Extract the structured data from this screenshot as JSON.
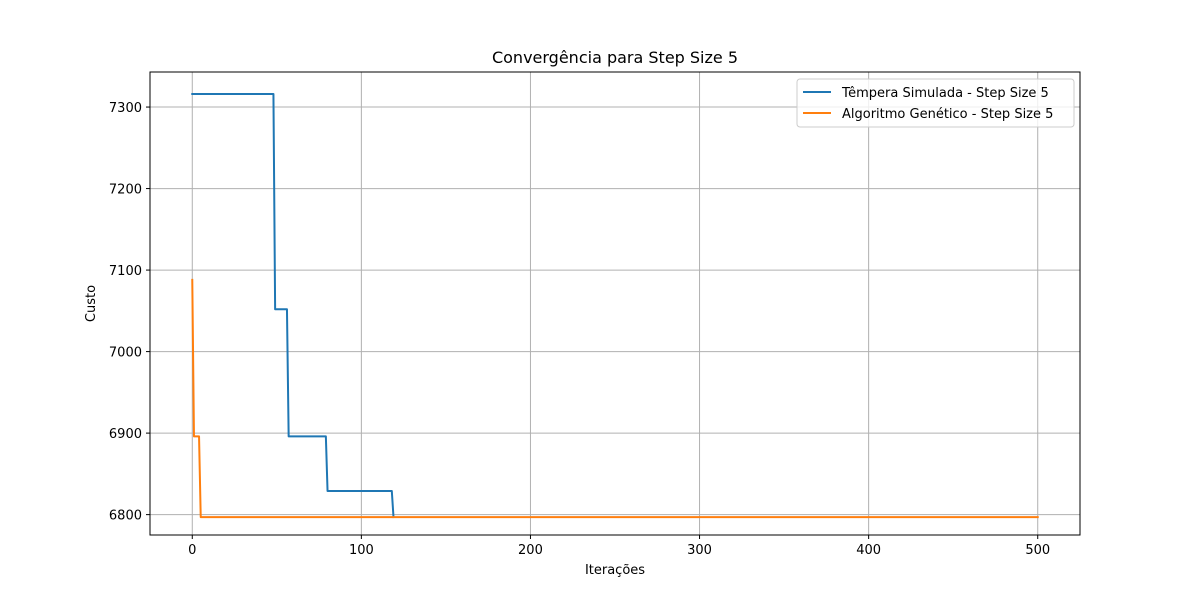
{
  "chart_data": {
    "type": "line",
    "title": "Convergência para Step Size 5",
    "xlabel": "Iterações",
    "ylabel": "Custo",
    "xlim": [
      -25,
      525
    ],
    "ylim": [
      6775,
      7343
    ],
    "xticks": [
      0,
      100,
      200,
      300,
      400,
      500
    ],
    "yticks": [
      6800,
      6900,
      7000,
      7100,
      7200,
      7300
    ],
    "grid": true,
    "legend_position": "top-right",
    "series": [
      {
        "name": "Têmpera Simulada - Step Size 5",
        "color": "#1f77b4",
        "x": [
          0,
          48,
          49,
          56,
          57,
          79,
          80,
          118,
          119
        ],
        "y": [
          7316,
          7316,
          7052,
          7052,
          6896,
          6896,
          6829,
          6829,
          6797
        ]
      },
      {
        "name": "Algoritmo Genético - Step Size 5",
        "color": "#ff7f0e",
        "x": [
          0,
          1,
          4,
          5,
          500
        ],
        "y": [
          7088,
          6896,
          6896,
          6797,
          6797
        ]
      }
    ]
  }
}
